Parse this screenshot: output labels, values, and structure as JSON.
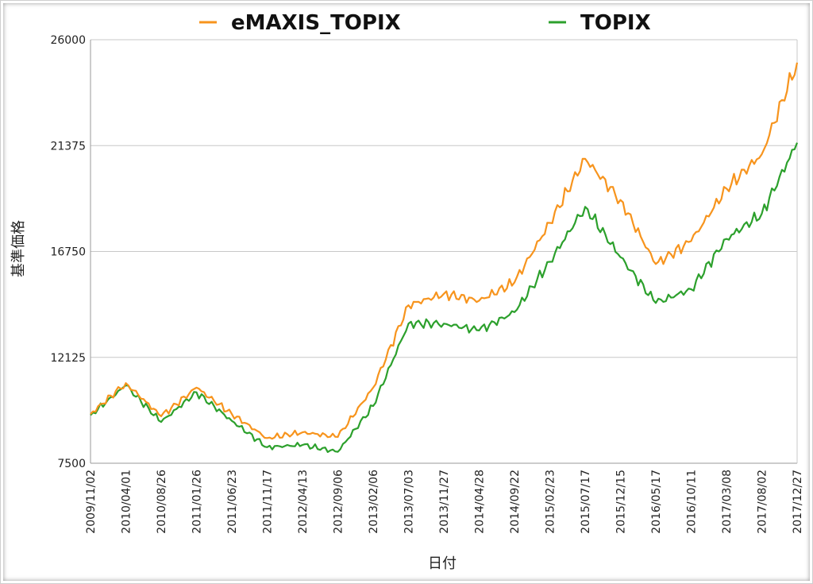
{
  "chart_data": {
    "type": "line",
    "title": "",
    "xlabel": "日付",
    "ylabel": "基準価格",
    "ylim": [
      7500,
      26000
    ],
    "yticks": [
      "7500",
      "12125",
      "16750",
      "21375",
      "26000"
    ],
    "grid": true,
    "legend_placement": "top-center",
    "x": [
      "2009/11/02",
      "2010/04/01",
      "2010/08/26",
      "2011/01/26",
      "2011/06/23",
      "2011/11/17",
      "2012/04/13",
      "2012/09/06",
      "2013/02/06",
      "2013/07/03",
      "2013/11/27",
      "2014/04/28",
      "2014/09/22",
      "2015/02/23",
      "2015/07/17",
      "2015/12/15",
      "2016/05/17",
      "2016/10/11",
      "2017/03/08",
      "2017/08/02",
      "2017/12/27"
    ],
    "series": [
      {
        "name": "eMAXIS_TOPIX",
        "color": "#f7941d",
        "values": [
          9650,
          11000,
          9550,
          10800,
          9650,
          8600,
          8850,
          8650,
          10800,
          14400,
          14900,
          14600,
          15400,
          18000,
          20800,
          19000,
          16200,
          17200,
          19500,
          21000,
          25000
        ]
      },
      {
        "name": "TOPIX",
        "color": "#2ca02c",
        "values": [
          9600,
          10900,
          9300,
          10600,
          9350,
          8200,
          8300,
          8000,
          10000,
          13600,
          13600,
          13300,
          14100,
          16300,
          18700,
          16500,
          14500,
          15100,
          17300,
          18400,
          21500
        ]
      }
    ]
  }
}
